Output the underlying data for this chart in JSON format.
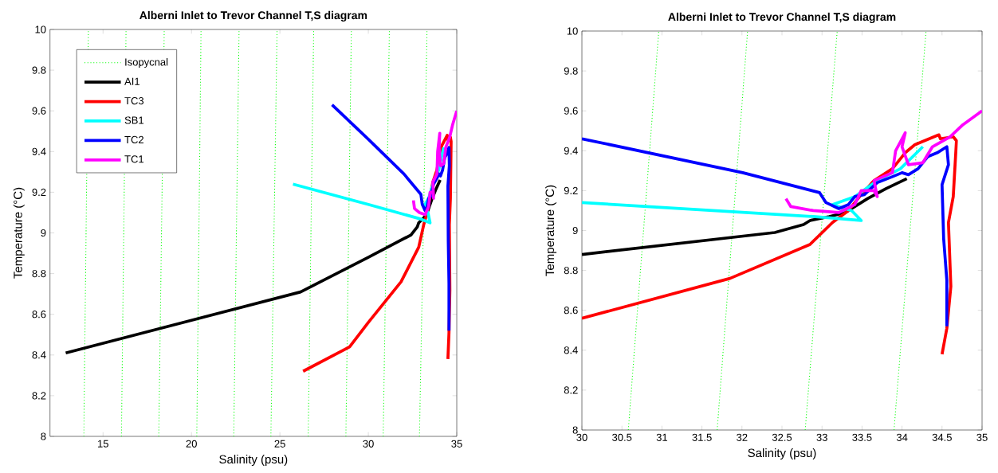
{
  "chart_data": [
    {
      "type": "line",
      "title": "Alberni Inlet to Trevor Channel T,S diagram",
      "xlabel": "Salinity (psu)",
      "ylabel": "Temperature (°C)",
      "xlim": [
        12,
        35
      ],
      "ylim": [
        8,
        10
      ],
      "xticks": [
        15,
        20,
        25,
        30,
        35
      ],
      "yticks": [
        8,
        8.2,
        8.4,
        8.6,
        8.8,
        9,
        9.2,
        9.4,
        9.6,
        9.8,
        10
      ],
      "legend": "top left",
      "series": [
        {
          "name": "Isopycnal",
          "color": "#00ff00",
          "line_style": "dotted",
          "x": [
            13.91,
            14.17,
            null,
            16.04,
            16.3,
            null,
            18.15,
            18.46,
            null,
            20.3,
            20.54,
            null,
            22.39,
            22.69,
            null,
            24.49,
            24.84,
            null,
            26.6,
            26.91,
            null,
            28.73,
            29.04,
            null,
            30.84,
            31.19,
            null,
            32.89,
            33.32
          ],
          "values": [
            8,
            10,
            null,
            8,
            10,
            null,
            8,
            10,
            null,
            8,
            10,
            null,
            8,
            10,
            null,
            8,
            10,
            null,
            8,
            10,
            null,
            8,
            10,
            null,
            8,
            10,
            null,
            8,
            10
          ]
        },
        {
          "name": "AI1",
          "color": "#000000",
          "x": [
            12.89,
            26.17,
            30,
            32.41,
            32.77,
            32.85,
            33.09,
            33.29,
            33.41,
            33.57,
            33.8,
            34.06
          ],
          "values": [
            8.41,
            8.71,
            8.88,
            8.99,
            9.03,
            9.05,
            9.07,
            9.09,
            9.12,
            9.16,
            9.21,
            9.26
          ]
        },
        {
          "name": "TC3",
          "color": "#ff0000",
          "x": [
            26.31,
            28.94,
            30,
            31.85,
            32.85,
            33.13,
            33.33,
            33.49,
            33.65,
            33.88,
            34.04,
            34.16,
            34.28,
            34.46,
            34.48,
            34.64,
            34.68,
            34.66,
            34.64,
            34.58,
            34.61,
            34.56,
            34.5
          ],
          "values": [
            8.32,
            8.44,
            8.56,
            8.76,
            8.93,
            9.04,
            9.1,
            9.18,
            9.25,
            9.31,
            9.39,
            9.43,
            9.45,
            9.48,
            9.46,
            9.47,
            9.45,
            9.31,
            9.17,
            9.04,
            8.72,
            8.51,
            8.38
          ]
        },
        {
          "name": "SB1",
          "color": "#00ffff",
          "x": [
            25.74,
            30,
            32.89,
            33.49,
            33.37,
            33.13,
            33.41,
            33.69,
            33.98,
            34.26
          ],
          "values": [
            9.24,
            9.14,
            9.07,
            9.05,
            9.1,
            9.13,
            9.17,
            9.25,
            9.31,
            9.42
          ]
        },
        {
          "name": "TC2",
          "color": "#0000ff",
          "x": [
            27.95,
            30,
            32.01,
            32.97,
            33.05,
            33.21,
            33.33,
            33.41,
            33.53,
            33.69,
            33.88,
            34.0,
            34.08,
            34.2,
            34.32,
            34.44,
            34.56,
            34.58,
            34.5,
            34.52,
            34.56,
            34.56
          ],
          "values": [
            9.63,
            9.46,
            9.29,
            9.19,
            9.14,
            9.11,
            9.13,
            9.17,
            9.18,
            9.24,
            9.27,
            9.29,
            9.28,
            9.31,
            9.37,
            9.39,
            9.42,
            9.33,
            9.23,
            8.96,
            8.75,
            8.52
          ]
        },
        {
          "name": "TC1",
          "color": "#ff00ff",
          "x": [
            32.55,
            32.61,
            32.89,
            33.21,
            33.41,
            33.49,
            33.65,
            33.69,
            33.65,
            33.88,
            33.92,
            34.04,
            34.0,
            34.08,
            34.26,
            34.38,
            34.6,
            34.76,
            35
          ],
          "values": [
            9.16,
            9.12,
            9.1,
            9.09,
            9.13,
            9.2,
            9.2,
            9.17,
            9.25,
            9.29,
            9.4,
            9.49,
            9.42,
            9.33,
            9.34,
            9.42,
            9.47,
            9.53,
            9.6
          ]
        }
      ]
    },
    {
      "type": "line",
      "title": "Alberni Inlet to Trevor Channel T,S diagram",
      "xlabel": "Salinity (psu)",
      "ylabel": "Temperature (°C)",
      "xlim": [
        30,
        35
      ],
      "ylim": [
        8,
        10
      ],
      "xticks": [
        30,
        30.5,
        31,
        31.5,
        32,
        32.5,
        33,
        33.5,
        34,
        34.5,
        35
      ],
      "yticks": [
        8,
        8.2,
        8.4,
        8.6,
        8.8,
        9,
        9.2,
        9.4,
        9.6,
        9.8,
        10
      ],
      "series": [
        {
          "color": "#00ff00",
          "line_style": "dotted",
          "x": [
            30.58,
            30.96,
            null,
            31.69,
            32.07,
            null,
            32.79,
            33.19,
            null,
            33.9,
            34.3
          ],
          "values": [
            8,
            10,
            null,
            8,
            10,
            null,
            8,
            10,
            null,
            8,
            10
          ]
        },
        {
          "color": "#000000",
          "x": [
            30,
            32.41,
            32.77,
            32.85,
            33.09,
            33.29,
            33.41,
            33.57,
            33.8,
            34.06
          ],
          "values": [
            8.88,
            8.99,
            9.03,
            9.05,
            9.07,
            9.09,
            9.12,
            9.16,
            9.21,
            9.26
          ]
        },
        {
          "color": "#ff0000",
          "x": [
            30,
            31.85,
            32.85,
            33.13,
            33.33,
            33.49,
            33.65,
            33.88,
            34.04,
            34.16,
            34.28,
            34.46,
            34.48,
            34.64,
            34.68,
            34.66,
            34.64,
            34.58,
            34.61,
            34.56,
            34.5
          ],
          "values": [
            8.56,
            8.76,
            8.93,
            9.04,
            9.1,
            9.18,
            9.25,
            9.31,
            9.39,
            9.43,
            9.45,
            9.48,
            9.46,
            9.47,
            9.45,
            9.31,
            9.17,
            9.04,
            8.72,
            8.51,
            8.38
          ]
        },
        {
          "color": "#00ffff",
          "x": [
            30,
            32.89,
            33.49,
            33.37,
            33.13,
            33.41,
            33.69,
            33.98,
            34.26
          ],
          "values": [
            9.14,
            9.07,
            9.05,
            9.1,
            9.13,
            9.17,
            9.25,
            9.31,
            9.42
          ]
        },
        {
          "color": "#0000ff",
          "x": [
            30,
            32.01,
            32.97,
            33.05,
            33.21,
            33.33,
            33.41,
            33.53,
            33.69,
            33.88,
            34.0,
            34.08,
            34.2,
            34.32,
            34.44,
            34.56,
            34.58,
            34.5,
            34.52,
            34.56,
            34.56
          ],
          "values": [
            9.46,
            9.29,
            9.19,
            9.14,
            9.11,
            9.13,
            9.17,
            9.18,
            9.24,
            9.27,
            9.29,
            9.28,
            9.31,
            9.37,
            9.39,
            9.42,
            9.33,
            9.23,
            8.96,
            8.75,
            8.52
          ]
        },
        {
          "color": "#ff00ff",
          "x": [
            32.55,
            32.61,
            32.89,
            33.21,
            33.41,
            33.49,
            33.65,
            33.69,
            33.65,
            33.88,
            33.92,
            34.04,
            34.0,
            34.08,
            34.26,
            34.38,
            34.6,
            34.76,
            35
          ],
          "values": [
            9.16,
            9.12,
            9.1,
            9.09,
            9.13,
            9.2,
            9.2,
            9.17,
            9.25,
            9.29,
            9.4,
            9.49,
            9.42,
            9.33,
            9.34,
            9.42,
            9.47,
            9.53,
            9.6
          ]
        }
      ]
    }
  ]
}
